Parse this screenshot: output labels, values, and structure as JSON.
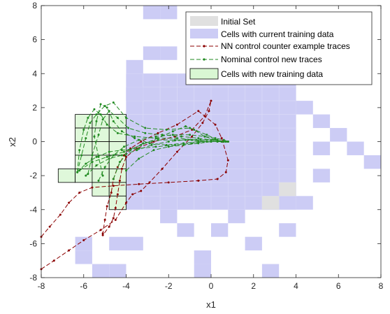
{
  "chart_data": {
    "type": "scatter",
    "xlabel": "x1",
    "ylabel": "x2",
    "xlim": [
      -8,
      8
    ],
    "ylim": [
      -8,
      8
    ],
    "xticks": [
      "-8",
      "-6",
      "-4",
      "-2",
      "0",
      "2",
      "4",
      "6",
      "8"
    ],
    "yticks": [
      "8",
      "6",
      "4",
      "2",
      "0",
      "-2",
      "-4",
      "-6",
      "-8"
    ],
    "grid": false,
    "legend_position": "top-right",
    "cell_size": 0.8,
    "colors": {
      "initial_set": "#e0e0e0",
      "current_cells": "#ccccf5",
      "nn_traces": "#8b0000",
      "nominal_traces": "#228b22",
      "new_cells_fill": "#d9f7d3",
      "new_cells_edge": "#000000"
    },
    "legend": [
      {
        "key": "initial",
        "label": "Initial Set"
      },
      {
        "key": "current",
        "label": "Cells with current training data"
      },
      {
        "key": "nn",
        "label": "NN control counter example traces"
      },
      {
        "key": "nominal",
        "label": "Nominal control new traces"
      },
      {
        "key": "newcells",
        "label": "Cells with new training data"
      }
    ],
    "initial_set_cells": [
      [
        2.4,
        -4.0
      ],
      [
        3.2,
        -3.2
      ]
    ],
    "current_cells": [
      [
        -3.2,
        7.2
      ],
      [
        -2.4,
        7.2
      ],
      [
        -4.0,
        4.0
      ],
      [
        -3.2,
        4.8
      ],
      [
        -2.4,
        4.8
      ],
      [
        0.0,
        5.6
      ],
      [
        0.8,
        4.8
      ],
      [
        2.4,
        4.0
      ],
      [
        -4.0,
        2.4
      ],
      [
        4.0,
        1.6
      ],
      [
        4.8,
        0.8
      ],
      [
        4.8,
        -0.8
      ],
      [
        5.6,
        0.0
      ],
      [
        6.4,
        -0.8
      ],
      [
        7.2,
        -1.6
      ],
      [
        4.8,
        -2.4
      ],
      [
        4.0,
        -4.0
      ],
      [
        -2.4,
        -4.8
      ],
      [
        -1.6,
        -5.6
      ],
      [
        0.0,
        -5.6
      ],
      [
        0.8,
        -4.8
      ],
      [
        1.6,
        -6.4
      ],
      [
        3.2,
        -5.6
      ],
      [
        -4.0,
        -6.4
      ],
      [
        -4.8,
        -6.4
      ],
      [
        -6.4,
        -6.4
      ],
      [
        -0.8,
        -7.2
      ],
      [
        -6.4,
        -7.2
      ],
      [
        -5.6,
        -8.0
      ],
      [
        -4.8,
        -8.0
      ],
      [
        -0.8,
        -8.0
      ],
      [
        2.4,
        -8.0
      ]
    ],
    "current_region": {
      "x": [
        -4.0,
        4.0
      ],
      "y": [
        -4.0,
        4.0
      ]
    },
    "new_cells": [
      [
        -6.4,
        0.8
      ],
      [
        -5.6,
        0.8
      ],
      [
        -4.8,
        0.8
      ],
      [
        -6.4,
        0.0
      ],
      [
        -5.6,
        0.0
      ],
      [
        -4.8,
        0.0
      ],
      [
        -6.4,
        -0.8
      ],
      [
        -5.6,
        -0.8
      ],
      [
        -4.8,
        -0.8
      ],
      [
        -6.4,
        -1.6
      ],
      [
        -5.6,
        -1.6
      ],
      [
        -4.8,
        -1.6
      ],
      [
        -7.2,
        -2.4
      ],
      [
        -6.4,
        -2.4
      ],
      [
        -5.6,
        -2.4
      ],
      [
        -4.8,
        -2.4
      ],
      [
        -5.6,
        -3.2
      ],
      [
        -4.8,
        -3.2
      ],
      [
        -4.8,
        -4.0
      ]
    ],
    "nn_traces": [
      [
        [
          -8.0,
          -5.6
        ],
        [
          -7.6,
          -5.0
        ],
        [
          -7.1,
          -4.3
        ],
        [
          -6.7,
          -3.6
        ],
        [
          -6.2,
          -3.0
        ],
        [
          -5.6,
          -2.7
        ],
        [
          -4.6,
          -2.6
        ],
        [
          -3.4,
          -2.5
        ],
        [
          -2.0,
          -2.4
        ],
        [
          -0.6,
          -2.3
        ],
        [
          0.3,
          -2.2
        ],
        [
          0.7,
          -1.8
        ],
        [
          0.8,
          -1.1
        ],
        [
          0.5,
          0.2
        ],
        [
          0.2,
          1.0
        ],
        [
          -0.6,
          1.8
        ],
        [
          -1.6,
          1.0
        ],
        [
          -2.5,
          0.5
        ],
        [
          -3.3,
          0.0
        ],
        [
          -3.8,
          -0.4
        ],
        [
          -4.1,
          -0.8
        ],
        [
          -4.4,
          -1.5
        ],
        [
          -4.6,
          -2.2
        ],
        [
          -4.7,
          -3.0
        ],
        [
          -4.9,
          -3.8
        ],
        [
          -5.0,
          -4.6
        ],
        [
          -5.1,
          -5.4
        ]
      ],
      [
        [
          -8.0,
          -7.5
        ],
        [
          -7.4,
          -7.0
        ],
        [
          -6.7,
          -6.4
        ],
        [
          -6.0,
          -5.8
        ],
        [
          -5.2,
          -5.2
        ],
        [
          -4.5,
          -4.6
        ],
        [
          -4.0,
          -3.6
        ],
        [
          -3.7,
          -3.1
        ],
        [
          -3.3,
          -2.9
        ],
        [
          -2.9,
          -2.4
        ],
        [
          -2.3,
          -1.6
        ],
        [
          -1.6,
          -0.6
        ],
        [
          -0.9,
          0.3
        ],
        [
          -0.4,
          1.1
        ],
        [
          -0.1,
          1.8
        ],
        [
          0.0,
          2.4
        ],
        [
          -0.3,
          1.5
        ],
        [
          -0.9,
          0.7
        ],
        [
          -1.7,
          0.3
        ],
        [
          -2.7,
          0.0
        ],
        [
          -3.5,
          -0.4
        ],
        [
          -4.0,
          -0.9
        ],
        [
          -4.2,
          -1.6
        ],
        [
          -4.3,
          -2.3
        ],
        [
          -4.4,
          -3.1
        ],
        [
          -4.5,
          -3.9
        ],
        [
          -4.6,
          -4.5
        ],
        [
          -4.8,
          -5.0
        ],
        [
          -5.1,
          -5.5
        ]
      ]
    ],
    "nominal_traces": [
      [
        [
          -6.3,
          -1.8
        ],
        [
          -6.1,
          -0.8
        ],
        [
          -5.9,
          0.2
        ],
        [
          -5.7,
          1.1
        ],
        [
          -5.4,
          1.6
        ],
        [
          -5.0,
          2.1
        ],
        [
          -4.6,
          2.3
        ],
        [
          -4.0,
          1.4
        ],
        [
          -3.1,
          0.8
        ],
        [
          -2.1,
          0.7
        ],
        [
          -1.0,
          0.8
        ],
        [
          -0.2,
          0.4
        ],
        [
          0.3,
          0.1
        ],
        [
          0.6,
          0.0
        ],
        [
          0.7,
          0.0
        ]
      ],
      [
        [
          -6.3,
          -1.8
        ],
        [
          -6.2,
          -0.5
        ],
        [
          -6.0,
          0.7
        ],
        [
          -5.8,
          1.4
        ],
        [
          -5.5,
          1.9
        ],
        [
          -5.2,
          1.6
        ],
        [
          -4.9,
          1.0
        ],
        [
          -4.4,
          0.5
        ],
        [
          -3.6,
          0.3
        ],
        [
          -2.6,
          0.2
        ],
        [
          -1.6,
          0.2
        ],
        [
          -0.7,
          0.1
        ],
        [
          0.1,
          0.1
        ],
        [
          0.5,
          0.0
        ],
        [
          0.7,
          0.0
        ]
      ],
      [
        [
          -6.3,
          -1.8
        ],
        [
          -5.9,
          -1.3
        ],
        [
          -5.4,
          -0.9
        ],
        [
          -4.8,
          -0.6
        ],
        [
          -4.2,
          -0.5
        ],
        [
          -3.4,
          -0.4
        ],
        [
          -2.6,
          -0.3
        ],
        [
          -1.7,
          -0.2
        ],
        [
          -0.9,
          -0.1
        ],
        [
          -0.2,
          0.0
        ],
        [
          0.3,
          0.0
        ],
        [
          0.7,
          0.0
        ]
      ],
      [
        [
          -6.2,
          -1.7
        ],
        [
          -5.6,
          -1.2
        ],
        [
          -4.9,
          -0.9
        ],
        [
          -4.1,
          -0.6
        ],
        [
          -3.3,
          -0.2
        ],
        [
          -2.5,
          0.2
        ],
        [
          -1.8,
          0.6
        ],
        [
          -1.2,
          0.9
        ],
        [
          -0.8,
          0.7
        ],
        [
          -0.3,
          0.3
        ],
        [
          0.2,
          0.1
        ],
        [
          0.6,
          0.0
        ]
      ],
      [
        [
          -5.9,
          -2.0
        ],
        [
          -5.4,
          -1.4
        ],
        [
          -4.8,
          -1.0
        ],
        [
          -4.2,
          -0.8
        ],
        [
          -3.5,
          -0.5
        ],
        [
          -2.8,
          -0.2
        ],
        [
          -2.0,
          0.0
        ],
        [
          -1.2,
          0.1
        ],
        [
          -0.5,
          0.1
        ],
        [
          0.1,
          0.1
        ],
        [
          0.5,
          0.0
        ],
        [
          0.8,
          0.0
        ]
      ],
      [
        [
          -5.3,
          -2.3
        ],
        [
          -5.0,
          -1.5
        ],
        [
          -4.6,
          -0.8
        ],
        [
          -4.1,
          -0.3
        ],
        [
          -3.4,
          0.1
        ],
        [
          -2.6,
          0.3
        ],
        [
          -1.8,
          0.4
        ],
        [
          -1.0,
          0.4
        ],
        [
          -0.3,
          0.3
        ],
        [
          0.2,
          0.2
        ],
        [
          0.6,
          0.1
        ],
        [
          0.8,
          0.0
        ]
      ],
      [
        [
          -5.1,
          -2.0
        ],
        [
          -5.3,
          -0.9
        ],
        [
          -5.5,
          0.3
        ],
        [
          -5.4,
          1.2
        ],
        [
          -5.2,
          2.2
        ],
        [
          -4.9,
          2.0
        ],
        [
          -4.6,
          1.2
        ],
        [
          -4.2,
          0.6
        ],
        [
          -3.6,
          0.2
        ],
        [
          -2.9,
          -0.1
        ],
        [
          -2.1,
          -0.2
        ],
        [
          -1.3,
          -0.1
        ],
        [
          -0.6,
          0.0
        ],
        [
          0.0,
          0.0
        ],
        [
          0.5,
          0.0
        ],
        [
          0.8,
          0.0
        ]
      ],
      [
        [
          -5.8,
          -1.9
        ],
        [
          -5.6,
          -0.8
        ],
        [
          -5.3,
          0.4
        ],
        [
          -5.1,
          1.3
        ],
        [
          -4.8,
          1.8
        ],
        [
          -4.4,
          1.4
        ],
        [
          -3.9,
          0.8
        ],
        [
          -3.1,
          0.5
        ],
        [
          -2.3,
          0.4
        ],
        [
          -1.4,
          0.3
        ],
        [
          -0.6,
          0.2
        ],
        [
          0.0,
          0.1
        ],
        [
          0.5,
          0.0
        ],
        [
          0.7,
          0.0
        ]
      ],
      [
        [
          -4.6,
          -2.2
        ],
        [
          -4.3,
          -1.2
        ],
        [
          -3.8,
          -0.5
        ],
        [
          -3.2,
          -0.1
        ],
        [
          -2.5,
          0.1
        ],
        [
          -1.7,
          0.1
        ],
        [
          -0.9,
          0.1
        ],
        [
          -0.2,
          0.0
        ],
        [
          0.3,
          0.0
        ],
        [
          0.7,
          0.0
        ]
      ],
      [
        [
          -4.0,
          -1.7
        ],
        [
          -3.4,
          -1.0
        ],
        [
          -2.7,
          -0.5
        ],
        [
          -2.0,
          -0.3
        ],
        [
          -1.3,
          -0.2
        ],
        [
          -0.6,
          -0.1
        ],
        [
          0.0,
          0.0
        ],
        [
          0.5,
          0.0
        ],
        [
          0.8,
          0.0
        ]
      ]
    ]
  }
}
